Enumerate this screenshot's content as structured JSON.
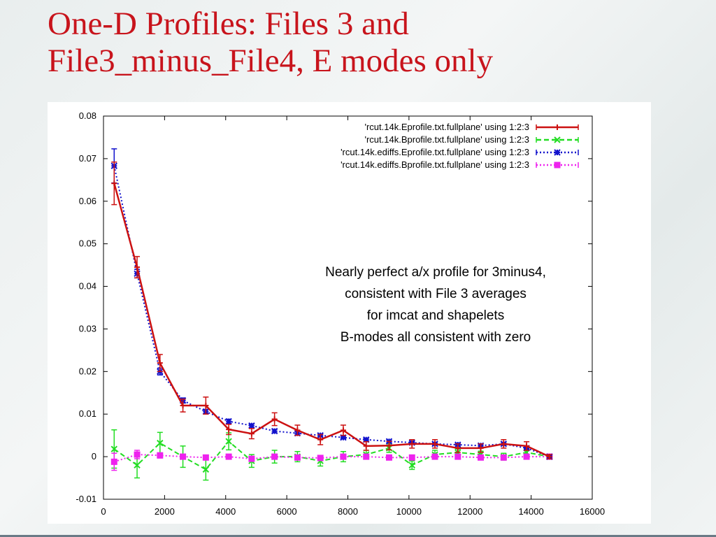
{
  "slide": {
    "title_line1": "One-D Profiles: Files 3 and",
    "title_line2": "File3_minus_File4, E modes only",
    "title_color": "#c8141c"
  },
  "annotation": {
    "lines": [
      "Nearly perfect a/x profile for 3minus4,",
      "consistent with File 3 averages",
      "for imcat and shapelets",
      "B-modes all consistent with zero"
    ]
  },
  "chart_data": {
    "type": "line",
    "title": "",
    "xlabel": "",
    "ylabel": "",
    "xlim": [
      0,
      16000
    ],
    "ylim": [
      -0.01,
      0.08
    ],
    "grid": false,
    "legend_position": "top-right",
    "x_ticks": [
      "0",
      "2000",
      "4000",
      "6000",
      "8000",
      "10000",
      "12000",
      "14000",
      "16000"
    ],
    "y_ticks": [
      "-0.01",
      "0",
      "0.01",
      "0.02",
      "0.03",
      "0.04",
      "0.05",
      "0.06",
      "0.07",
      "0.08"
    ],
    "x": [
      350,
      1100,
      1850,
      2600,
      3350,
      4100,
      4850,
      5600,
      6350,
      7100,
      7850,
      8600,
      9350,
      10100,
      10850,
      11600,
      12350,
      13100,
      13850,
      14600
    ],
    "series": [
      {
        "name": "'rcut.14k.Eprofile.txt.fullplane' using 1:2:3",
        "color": "#cc1111",
        "style": "solid",
        "marker": "plus",
        "y": [
          0.0642,
          0.0445,
          0.022,
          0.012,
          0.012,
          0.0064,
          0.0054,
          0.0088,
          0.0062,
          0.004,
          0.0062,
          0.0025,
          0.0026,
          0.003,
          0.003,
          0.002,
          0.002,
          0.003,
          0.0025,
          0.0
        ],
        "err": [
          0.005,
          0.0025,
          0.002,
          0.0015,
          0.002,
          0.0012,
          0.0012,
          0.0015,
          0.0012,
          0.0012,
          0.0012,
          0.001,
          0.001,
          0.001,
          0.001,
          0.001,
          0.001,
          0.001,
          0.001,
          0.0005
        ]
      },
      {
        "name": "'rcut.14k.Bprofile.txt.fullplane' using 1:2:3",
        "color": "#22dd22",
        "style": "dashed",
        "marker": "x",
        "y": [
          0.0018,
          -0.002,
          0.0032,
          0.0,
          -0.003,
          0.0036,
          -0.001,
          0.0,
          0.0,
          -0.001,
          0.0,
          0.0005,
          0.002,
          -0.002,
          0.0005,
          0.001,
          0.0005,
          0.0,
          0.001,
          0.0
        ],
        "err": [
          0.0045,
          0.003,
          0.0025,
          0.0025,
          0.0025,
          0.002,
          0.0015,
          0.0015,
          0.0012,
          0.0012,
          0.0012,
          0.001,
          0.001,
          0.001,
          0.001,
          0.0008,
          0.0008,
          0.0008,
          0.0008,
          0.0005
        ]
      },
      {
        "name": "'rcut.14k.ediffs.Eprofile.txt.fullplane' using 1:2:3",
        "color": "#1111cc",
        "style": "dotted",
        "marker": "star",
        "y": [
          0.0683,
          0.043,
          0.02,
          0.0132,
          0.0106,
          0.0083,
          0.0073,
          0.006,
          0.0055,
          0.005,
          0.0045,
          0.004,
          0.0036,
          0.0033,
          0.003,
          0.0028,
          0.0026,
          0.003,
          0.002,
          0.0
        ],
        "err": [
          0.004,
          0.001,
          0.0008,
          0.0006,
          0.0005,
          0.0005,
          0.0004,
          0.0004,
          0.0004,
          0.0003,
          0.0003,
          0.0003,
          0.0003,
          0.0003,
          0.0003,
          0.0003,
          0.0003,
          0.0003,
          0.0003,
          0.0002
        ]
      },
      {
        "name": "'rcut.14k.ediffs.Bprofile.txt.fullplane' using 1:2:3",
        "color": "#ee22ee",
        "style": "dotted",
        "marker": "square",
        "y": [
          -0.0012,
          0.0005,
          0.0003,
          0.0,
          -0.0002,
          0.0,
          -0.0005,
          0.0,
          -0.0002,
          -0.0003,
          0.0,
          0.0,
          -0.0002,
          -0.0002,
          0.0,
          0.0,
          -0.0002,
          -0.0002,
          0.0,
          0.0
        ],
        "err": [
          0.002,
          0.001,
          0.0006,
          0.0005,
          0.0004,
          0.0004,
          0.0004,
          0.0004,
          0.0003,
          0.0003,
          0.0003,
          0.0003,
          0.0003,
          0.0003,
          0.0003,
          0.0003,
          0.0003,
          0.0003,
          0.0003,
          0.0002
        ]
      }
    ]
  }
}
